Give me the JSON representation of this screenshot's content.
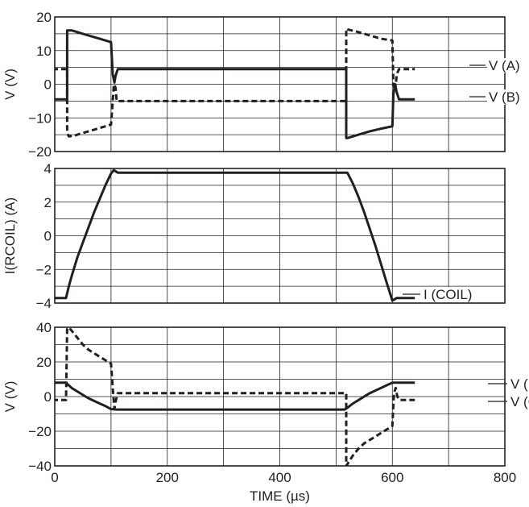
{
  "chart_data": [
    {
      "type": "line",
      "ylabel": "V (V)",
      "xlim": [
        0,
        800
      ],
      "ylim": [
        -20,
        20
      ],
      "yticks": [
        20,
        10,
        0,
        -10,
        -20
      ],
      "xticks": [
        0,
        200,
        400,
        600,
        800
      ],
      "grid": true,
      "series": [
        {
          "name": "V (A)",
          "style": "dashed",
          "x": [
            -20,
            22,
            22,
            25,
            35,
            40,
            50,
            60,
            70,
            80,
            90,
            100,
            103,
            105,
            108,
            110,
            115,
            500,
            518,
            518,
            520,
            540,
            560,
            580,
            600,
            602,
            605,
            608,
            612,
            640
          ],
          "y": [
            4.5,
            4.5,
            -14.5,
            -15.5,
            -15.3,
            -15,
            -14.5,
            -14,
            -13.5,
            -13,
            -12.5,
            -12,
            -5,
            0,
            -1,
            -5,
            -5,
            -5,
            -5,
            16.5,
            16.3,
            15.5,
            14.5,
            13.5,
            13,
            0,
            -2,
            3,
            4.5,
            4.5
          ]
        },
        {
          "name": "V (B)",
          "style": "solid",
          "x": [
            -20,
            22,
            22,
            30,
            40,
            50,
            60,
            70,
            80,
            90,
            100,
            103,
            106,
            108,
            112,
            500,
            518,
            518,
            520,
            540,
            560,
            580,
            600,
            602,
            605,
            608,
            612,
            640
          ],
          "y": [
            -4.5,
            -4.5,
            16,
            16,
            15.5,
            15,
            14.5,
            14,
            13.5,
            13,
            12.5,
            3,
            0.5,
            2.5,
            4.5,
            4.5,
            4.5,
            -16,
            -16,
            -15,
            -14,
            -13.2,
            -12.5,
            -3,
            0,
            -2.5,
            -4.5,
            -4.5
          ]
        }
      ]
    },
    {
      "type": "line",
      "ylabel": "I(RCOIL) (A)",
      "xlim": [
        0,
        800
      ],
      "ylim": [
        -4,
        4
      ],
      "yticks": [
        4,
        2,
        0,
        -2,
        -4
      ],
      "xticks": [
        0,
        200,
        400,
        600,
        800
      ],
      "grid": true,
      "series": [
        {
          "name": "I (COIL)",
          "style": "solid",
          "x": [
            -20,
            20,
            25,
            30,
            40,
            50,
            60,
            70,
            80,
            90,
            100,
            105,
            112,
            520,
            530,
            540,
            550,
            560,
            570,
            580,
            590,
            600,
            608,
            640
          ],
          "y": [
            -3.7,
            -3.7,
            -3.0,
            -2.4,
            -1.3,
            -0.4,
            0.5,
            1.4,
            2.2,
            3.0,
            3.7,
            3.9,
            3.75,
            3.75,
            3.1,
            2.3,
            1.4,
            0.4,
            -0.6,
            -1.7,
            -2.8,
            -3.85,
            -3.7,
            -3.7
          ]
        }
      ]
    },
    {
      "type": "line",
      "ylabel": "V (V)",
      "xlabel": "TIME (µs)",
      "xlim": [
        0,
        800
      ],
      "ylim": [
        -40,
        40
      ],
      "yticks": [
        40,
        20,
        0,
        -20,
        -40
      ],
      "xticks": [
        0,
        200,
        400,
        600,
        800
      ],
      "xticklabels": [
        "0",
        "200",
        "400",
        "600",
        "800"
      ],
      "grid": true,
      "series": [
        {
          "name": "V (RSENSE)",
          "style": "solid",
          "x": [
            -20,
            20,
            20,
            30,
            40,
            50,
            60,
            70,
            80,
            90,
            100,
            110,
            200,
            300,
            400,
            515,
            520,
            530,
            540,
            550,
            560,
            570,
            580,
            590,
            600,
            640
          ],
          "y": [
            8,
            8,
            8,
            5,
            3,
            1,
            -1,
            -2.5,
            -4,
            -5.5,
            -7.2,
            -7.5,
            -7.5,
            -7.5,
            -7.5,
            -7.5,
            -6.5,
            -4,
            -2,
            0,
            2,
            3.5,
            5,
            6.5,
            8,
            8
          ]
        },
        {
          "name": "V (COIL)",
          "style": "dashed",
          "x": [
            -20,
            20,
            22,
            25,
            30,
            40,
            50,
            60,
            70,
            80,
            90,
            100,
            103,
            106,
            108,
            112,
            500,
            518,
            518,
            520,
            530,
            540,
            550,
            560,
            570,
            580,
            590,
            600,
            603,
            606,
            609,
            613,
            640
          ],
          "y": [
            -2,
            -2,
            39,
            40,
            38,
            34,
            30,
            27,
            25,
            23,
            21,
            19,
            5,
            -7,
            -3,
            2,
            2,
            2,
            -40,
            -39,
            -34,
            -30,
            -27,
            -25,
            -23,
            -21,
            -19,
            -17,
            2,
            5,
            0,
            -2,
            -2
          ]
        }
      ]
    }
  ]
}
